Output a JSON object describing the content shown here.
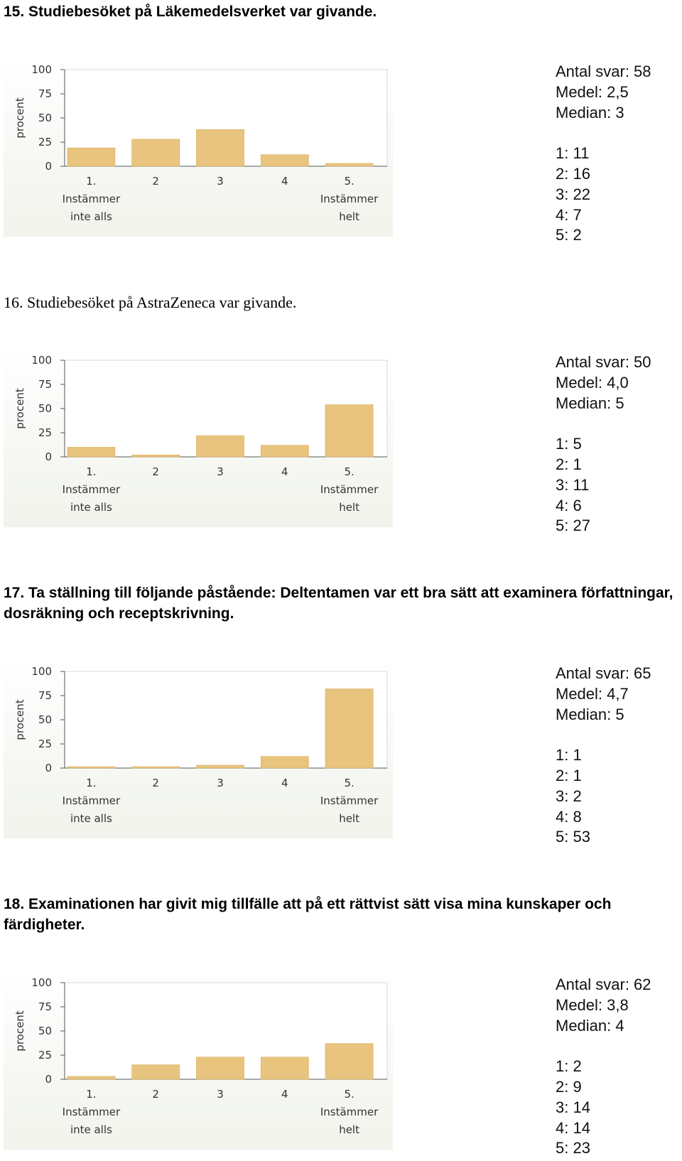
{
  "sections": [
    {
      "heading": "15.  Studiebesöket på Läkemedelsverket var givande.",
      "chart": {
        "type": "bar",
        "ylabel": "procent",
        "categories": [
          [
            "1.",
            "Instämmer",
            "inte alls"
          ],
          [
            "2"
          ],
          [
            "3"
          ],
          [
            "4"
          ],
          [
            "5.",
            "Instämmer",
            "helt"
          ]
        ],
        "values": [
          19,
          28,
          38,
          12,
          3
        ],
        "ylim": [
          0,
          100
        ],
        "yticks": [
          0,
          25,
          50,
          75,
          100
        ],
        "color": "#e8c47e"
      },
      "summary": [
        "Antal svar: 58",
        "Medel: 2,5",
        "Median: 3"
      ],
      "counts": [
        "1: 11",
        "2: 16",
        "3: 22",
        "4: 7",
        "5: 2"
      ]
    },
    {
      "heading": "16.  Studiebesöket på AstraZeneca var givande.",
      "chart": {
        "type": "bar",
        "ylabel": "procent",
        "categories": [
          [
            "1.",
            "Instämmer",
            "inte alls"
          ],
          [
            "2"
          ],
          [
            "3"
          ],
          [
            "4"
          ],
          [
            "5.",
            "Instämmer",
            "helt"
          ]
        ],
        "values": [
          10,
          2,
          22,
          12,
          54
        ],
        "ylim": [
          0,
          100
        ],
        "yticks": [
          0,
          25,
          50,
          75,
          100
        ],
        "color": "#e8c47e"
      },
      "summary": [
        "Antal svar: 50",
        "Medel: 4,0",
        "Median: 5"
      ],
      "counts": [
        "1: 5",
        "2: 1",
        "3: 11",
        "4: 6",
        "5: 27"
      ]
    },
    {
      "heading": "17.  Ta ställning till följande påstående: Deltentamen var ett bra sätt att examinera författningar, dosräkning och receptskrivning.",
      "chart": {
        "type": "bar",
        "ylabel": "procent",
        "categories": [
          [
            "1.",
            "Instämmer",
            "inte alls"
          ],
          [
            "2"
          ],
          [
            "3"
          ],
          [
            "4"
          ],
          [
            "5.",
            "Instämmer",
            "helt"
          ]
        ],
        "values": [
          1.5,
          1.5,
          3,
          12,
          82
        ],
        "ylim": [
          0,
          100
        ],
        "yticks": [
          0,
          25,
          50,
          75,
          100
        ],
        "color": "#e8c47e"
      },
      "summary": [
        "Antal svar: 65",
        "Medel: 4,7",
        "Median: 5"
      ],
      "counts": [
        "1: 1",
        "2: 1",
        "3: 2",
        "4: 8",
        "5: 53"
      ]
    },
    {
      "heading": "18.  Examinationen har givit mig tillfälle att på ett rättvist sätt visa mina kunskaper och färdigheter.",
      "chart": {
        "type": "bar",
        "ylabel": "procent",
        "categories": [
          [
            "1.",
            "Instämmer",
            "inte alls"
          ],
          [
            "2"
          ],
          [
            "3"
          ],
          [
            "4"
          ],
          [
            "5.",
            "Instämmer",
            "helt"
          ]
        ],
        "values": [
          3,
          15,
          23,
          23,
          37
        ],
        "ylim": [
          0,
          100
        ],
        "yticks": [
          0,
          25,
          50,
          75,
          100
        ],
        "color": "#e8c47e"
      },
      "summary": [
        "Antal svar: 62",
        "Medel: 3,8",
        "Median: 4"
      ],
      "counts": [
        "1: 2",
        "2: 9",
        "3: 14",
        "4: 14",
        "5: 23"
      ]
    }
  ]
}
